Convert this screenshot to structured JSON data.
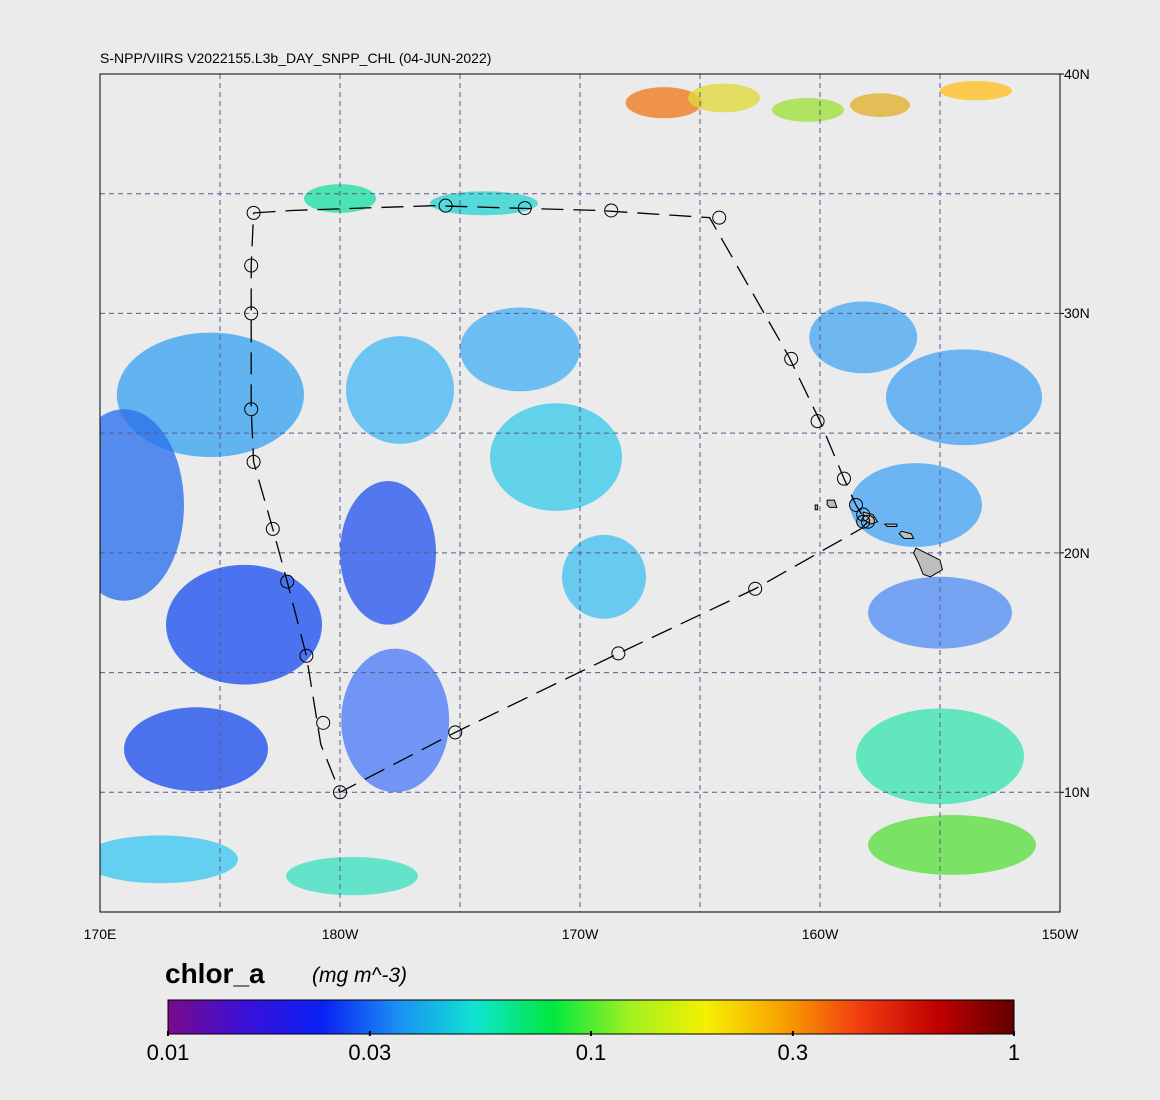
{
  "title": "S-NPP/VIIRS V2022155.L3b_DAY_SNPP_CHL (04-JUN-2022)",
  "map": {
    "lon_range": [
      170,
      210
    ],
    "lat_range": [
      5,
      40
    ],
    "lon_labels": [
      {
        "lon": 170,
        "text": "170E"
      },
      {
        "lon": 180,
        "text": "180W"
      },
      {
        "lon": 190,
        "text": "170W"
      },
      {
        "lon": 200,
        "text": "160W"
      },
      {
        "lon": 210,
        "text": "150W"
      }
    ],
    "lat_labels": [
      {
        "lat": 40,
        "text": "40N"
      },
      {
        "lat": 30,
        "text": "30N"
      },
      {
        "lat": 20,
        "text": "20N"
      },
      {
        "lat": 10,
        "text": "10N"
      }
    ],
    "grid_lons": [
      175,
      180,
      185,
      190,
      195,
      200,
      205
    ],
    "grid_lats": [
      35,
      30,
      25,
      20,
      15,
      10
    ],
    "colors": {
      "background": "#ebebeb",
      "grid": "#5a5a8c",
      "land": "#bdbdbd",
      "track": "#000000"
    },
    "track_points": [
      {
        "lon": 176.4,
        "lat": 34.2
      },
      {
        "lon": 178.0,
        "lat": 34.3
      },
      {
        "lon": 183.9,
        "lat": 34.5
      },
      {
        "lon": 187.2,
        "lat": 34.4
      },
      {
        "lon": 190.8,
        "lat": 34.3
      },
      {
        "lon": 195.4,
        "lat": 34.0
      },
      {
        "lon": 198.7,
        "lat": 28.2
      },
      {
        "lon": 200.0,
        "lat": 25.5
      },
      {
        "lon": 201.0,
        "lat": 23.1
      },
      {
        "lon": 201.5,
        "lat": 22.0
      },
      {
        "lon": 201.8,
        "lat": 21.5
      },
      {
        "lon": 202.0,
        "lat": 21.3
      },
      {
        "lon": 201.7,
        "lat": 21.0
      },
      {
        "lon": 197.3,
        "lat": 18.5
      },
      {
        "lon": 191.6,
        "lat": 15.8
      },
      {
        "lon": 184.8,
        "lat": 12.5
      },
      {
        "lon": 180.0,
        "lat": 10.0
      },
      {
        "lon": 179.2,
        "lat": 12.0
      },
      {
        "lon": 178.6,
        "lat": 15.7
      },
      {
        "lon": 177.8,
        "lat": 18.8
      },
      {
        "lon": 177.2,
        "lat": 21.0
      },
      {
        "lon": 176.4,
        "lat": 23.8
      },
      {
        "lon": 176.3,
        "lat": 26.0
      },
      {
        "lon": 176.3,
        "lat": 30.0
      },
      {
        "lon": 176.3,
        "lat": 32.0
      },
      {
        "lon": 176.4,
        "lat": 34.2
      }
    ],
    "station_markers": [
      {
        "lon": 176.4,
        "lat": 34.2
      },
      {
        "lon": 184.4,
        "lat": 34.5
      },
      {
        "lon": 187.7,
        "lat": 34.4
      },
      {
        "lon": 191.3,
        "lat": 34.3
      },
      {
        "lon": 195.8,
        "lat": 34.0
      },
      {
        "lon": 176.3,
        "lat": 32.0
      },
      {
        "lon": 176.3,
        "lat": 30.0
      },
      {
        "lon": 176.3,
        "lat": 26.0
      },
      {
        "lon": 176.4,
        "lat": 23.8
      },
      {
        "lon": 177.2,
        "lat": 21.0
      },
      {
        "lon": 177.8,
        "lat": 18.8
      },
      {
        "lon": 178.6,
        "lat": 15.7
      },
      {
        "lon": 179.3,
        "lat": 12.9
      },
      {
        "lon": 180.0,
        "lat": 10.0
      },
      {
        "lon": 184.8,
        "lat": 12.5
      },
      {
        "lon": 191.6,
        "lat": 15.8
      },
      {
        "lon": 197.3,
        "lat": 18.5
      },
      {
        "lon": 198.8,
        "lat": 28.1
      },
      {
        "lon": 199.9,
        "lat": 25.5
      },
      {
        "lon": 201.0,
        "lat": 23.1
      },
      {
        "lon": 201.5,
        "lat": 22.0
      },
      {
        "lon": 201.8,
        "lat": 21.6
      },
      {
        "lon": 202.0,
        "lat": 21.3
      },
      {
        "lon": 201.8,
        "lat": 21.3
      }
    ],
    "islands": [
      {
        "name": "Hawaii",
        "points": [
          [
            204.0,
            20.2
          ],
          [
            204.4,
            20.0
          ],
          [
            205.0,
            19.7
          ],
          [
            205.1,
            19.3
          ],
          [
            204.6,
            19.0
          ],
          [
            204.3,
            19.1
          ],
          [
            204.1,
            19.6
          ],
          [
            203.9,
            20.0
          ]
        ]
      },
      {
        "name": "Maui",
        "points": [
          [
            203.4,
            20.9
          ],
          [
            203.8,
            20.8
          ],
          [
            203.9,
            20.6
          ],
          [
            203.5,
            20.6
          ],
          [
            203.3,
            20.8
          ]
        ]
      },
      {
        "name": "Molokai",
        "points": [
          [
            202.7,
            21.2
          ],
          [
            203.2,
            21.2
          ],
          [
            203.2,
            21.1
          ],
          [
            202.8,
            21.1
          ]
        ]
      },
      {
        "name": "Oahu",
        "points": [
          [
            201.8,
            21.7
          ],
          [
            202.2,
            21.6
          ],
          [
            202.4,
            21.3
          ],
          [
            202.1,
            21.2
          ],
          [
            201.8,
            21.4
          ]
        ]
      },
      {
        "name": "Kauai",
        "points": [
          [
            200.3,
            22.2
          ],
          [
            200.6,
            22.2
          ],
          [
            200.7,
            21.9
          ],
          [
            200.4,
            21.9
          ],
          [
            200.3,
            22.0
          ]
        ]
      },
      {
        "name": "Niihau",
        "points": [
          [
            199.8,
            22.0
          ],
          [
            199.9,
            22.0
          ],
          [
            199.9,
            21.8
          ],
          [
            199.8,
            21.8
          ]
        ]
      }
    ],
    "chlorophyll_patches": [
      {
        "lon": 193.5,
        "lat": 38.8,
        "w": 3.2,
        "h": 1.3,
        "color": "#f07a1e"
      },
      {
        "lon": 196.0,
        "lat": 39.0,
        "w": 3.0,
        "h": 1.2,
        "color": "#e0d83a"
      },
      {
        "lon": 199.5,
        "lat": 38.5,
        "w": 3.0,
        "h": 1.0,
        "color": "#9de03a"
      },
      {
        "lon": 202.5,
        "lat": 38.7,
        "w": 2.5,
        "h": 1.0,
        "color": "#e0b02a"
      },
      {
        "lon": 206.5,
        "lat": 39.3,
        "w": 3.0,
        "h": 0.8,
        "color": "#ffc020"
      },
      {
        "lon": 180.0,
        "lat": 34.8,
        "w": 3.0,
        "h": 1.2,
        "color": "#1ee0a0"
      },
      {
        "lon": 186.0,
        "lat": 34.6,
        "w": 4.5,
        "h": 1.0,
        "color": "#2ad4d4"
      },
      {
        "lon": 174.6,
        "lat": 26.6,
        "w": 7.8,
        "h": 5.2,
        "color": "#3aa4f0"
      },
      {
        "lon": 171.0,
        "lat": 22.0,
        "w": 5.0,
        "h": 8.0,
        "color": "#2a70ec"
      },
      {
        "lon": 176.0,
        "lat": 17.0,
        "w": 6.5,
        "h": 5.0,
        "color": "#1e50f0"
      },
      {
        "lon": 174.0,
        "lat": 11.8,
        "w": 6.0,
        "h": 3.5,
        "color": "#1e50ec"
      },
      {
        "lon": 172.5,
        "lat": 7.2,
        "w": 6.5,
        "h": 2.0,
        "color": "#3ec8f0"
      },
      {
        "lon": 182.5,
        "lat": 26.8,
        "w": 4.5,
        "h": 4.5,
        "color": "#46b8f4"
      },
      {
        "lon": 182.0,
        "lat": 20.0,
        "w": 4.0,
        "h": 6.0,
        "color": "#2856f0"
      },
      {
        "lon": 182.3,
        "lat": 13.0,
        "w": 4.5,
        "h": 6.0,
        "color": "#4e7cf6"
      },
      {
        "lon": 187.5,
        "lat": 28.5,
        "w": 5.0,
        "h": 3.5,
        "color": "#48b0f2"
      },
      {
        "lon": 189.0,
        "lat": 24.0,
        "w": 5.5,
        "h": 4.5,
        "color": "#3acbe8"
      },
      {
        "lon": 191.0,
        "lat": 19.0,
        "w": 3.5,
        "h": 3.5,
        "color": "#42c0f0"
      },
      {
        "lon": 201.8,
        "lat": 29.0,
        "w": 4.5,
        "h": 3.0,
        "color": "#4aa8f2"
      },
      {
        "lon": 206.0,
        "lat": 26.5,
        "w": 6.5,
        "h": 4.0,
        "color": "#48a4f2"
      },
      {
        "lon": 204.0,
        "lat": 22.0,
        "w": 5.5,
        "h": 3.5,
        "color": "#46a6f4"
      },
      {
        "lon": 205.0,
        "lat": 17.5,
        "w": 6.0,
        "h": 3.0,
        "color": "#5490f4"
      },
      {
        "lon": 205.0,
        "lat": 11.5,
        "w": 7.0,
        "h": 4.0,
        "color": "#3ae4b0"
      },
      {
        "lon": 205.5,
        "lat": 7.8,
        "w": 7.0,
        "h": 2.5,
        "color": "#5ae040"
      },
      {
        "lon": 180.5,
        "lat": 6.5,
        "w": 5.5,
        "h": 1.6,
        "color": "#3ce0c0"
      }
    ]
  },
  "colorbar": {
    "variable": "chlor_a",
    "units": "(mg m^-3)",
    "min": 0.01,
    "max": 1,
    "scale": "log",
    "tick_labels": [
      {
        "value": 0.01,
        "text": "0.01"
      },
      {
        "value": 0.03,
        "text": "0.03"
      },
      {
        "value": 0.1,
        "text": "0.1"
      },
      {
        "value": 0.3,
        "text": "0.3"
      },
      {
        "value": 1,
        "text": "1"
      }
    ],
    "gradient_colors": [
      "#7a0a8c",
      "#3a10d8",
      "#0a20f4",
      "#1a90f4",
      "#10e4d0",
      "#00e840",
      "#a0f020",
      "#f4f000",
      "#f8a000",
      "#f03c10",
      "#c00000",
      "#600000"
    ]
  }
}
